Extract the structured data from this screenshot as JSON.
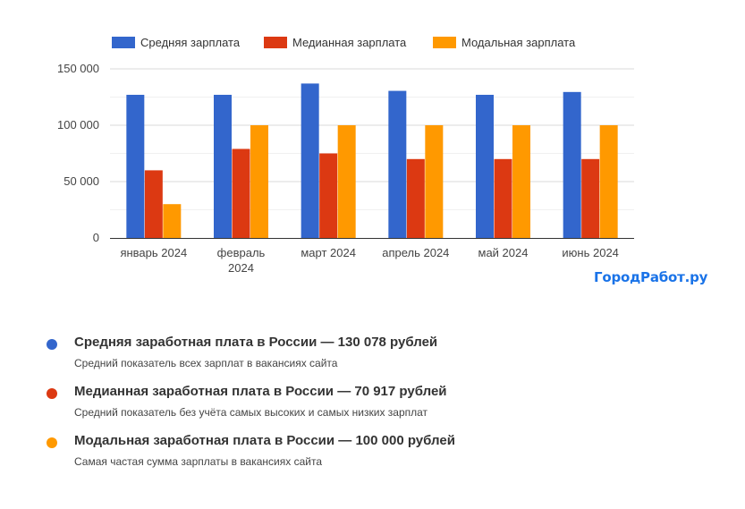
{
  "chart_data": {
    "type": "bar",
    "categories": [
      "январь 2024",
      "февраль 2024",
      "март 2024",
      "апрель 2024",
      "май 2024",
      "июнь 2024"
    ],
    "category_lines": [
      [
        "январь 2024"
      ],
      [
        "февраль",
        "2024"
      ],
      [
        "март 2024"
      ],
      [
        "апрель 2024"
      ],
      [
        "май 2024"
      ],
      [
        "июнь 2024"
      ]
    ],
    "series": [
      {
        "name": "Средняя зарплата",
        "color": "#3366cc",
        "values": [
          127000,
          127000,
          137000,
          130500,
          127000,
          129500
        ]
      },
      {
        "name": "Медианная зарплата",
        "color": "#dc3912",
        "values": [
          60000,
          79000,
          75000,
          70000,
          70000,
          70000
        ]
      },
      {
        "name": "Модальная зарплата",
        "color": "#ff9900",
        "values": [
          30000,
          100000,
          100000,
          100000,
          100000,
          100000
        ]
      }
    ],
    "ylim": [
      0,
      150000
    ],
    "yticks": [
      0,
      50000,
      100000,
      150000
    ],
    "ytick_labels": [
      "0",
      "50 000",
      "100 000",
      "150 000"
    ],
    "grid": true,
    "legend_position": "top",
    "title": "",
    "xlabel": "",
    "ylabel": ""
  },
  "brand": {
    "text": "ГородРабот.ру",
    "color": "#1a73e8"
  },
  "notes": [
    {
      "title": "Средняя заработная плата в России — 130 078 рублей",
      "subtitle": "Средний показатель всех зарплат в вакансиях сайта",
      "color": "#3366cc"
    },
    {
      "title": "Медианная заработная плата в России — 70 917 рублей",
      "subtitle": "Средний показатель без учёта самых высоких и самых низких зарплат",
      "color": "#dc3912"
    },
    {
      "title": "Модальная заработная плата в России — 100 000 рублей",
      "subtitle": "Самая частая сумма зарплаты в вакансиях сайта",
      "color": "#ff9900"
    }
  ]
}
